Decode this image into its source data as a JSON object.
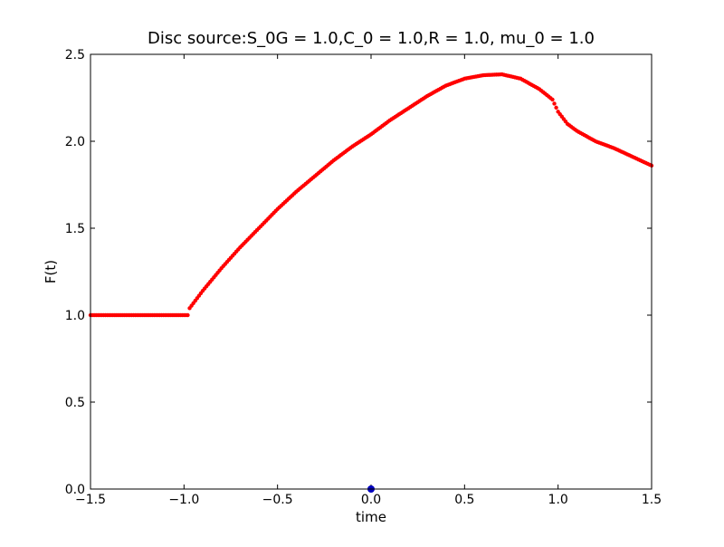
{
  "chart_data": {
    "type": "scatter",
    "title": "Disc source:S_0G = 1.0,C_0 = 1.0,R = 1.0, mu_0 = 1.0",
    "xlabel": "time",
    "ylabel": "F(t)",
    "xlim": [
      -1.5,
      1.5
    ],
    "ylim": [
      0.0,
      2.5
    ],
    "x_ticks": [
      "−1.5",
      "−1.0",
      "−0.5",
      "0.0",
      "0.5",
      "1.0",
      "1.5"
    ],
    "y_ticks": [
      "0.0",
      "0.5",
      "1.0",
      "1.5",
      "2.0",
      "2.5"
    ],
    "grid": false,
    "series": [
      {
        "color": "#ff0000",
        "marker": "dot",
        "points": [
          [
            -1.5,
            1.0
          ],
          [
            -1.4,
            1.0
          ],
          [
            -1.3,
            1.0
          ],
          [
            -1.2,
            1.0
          ],
          [
            -1.1,
            1.0
          ],
          [
            -1.0,
            1.0
          ],
          [
            -0.98,
            1.0
          ],
          [
            -0.97,
            1.04
          ],
          [
            -0.9,
            1.14
          ],
          [
            -0.8,
            1.27
          ],
          [
            -0.7,
            1.39
          ],
          [
            -0.6,
            1.5
          ],
          [
            -0.5,
            1.61
          ],
          [
            -0.4,
            1.71
          ],
          [
            -0.3,
            1.8
          ],
          [
            -0.2,
            1.89
          ],
          [
            -0.1,
            1.97
          ],
          [
            0.0,
            2.04
          ],
          [
            0.1,
            2.12
          ],
          [
            0.2,
            2.19
          ],
          [
            0.3,
            2.26
          ],
          [
            0.4,
            2.32
          ],
          [
            0.5,
            2.36
          ],
          [
            0.6,
            2.38
          ],
          [
            0.7,
            2.385
          ],
          [
            0.8,
            2.36
          ],
          [
            0.9,
            2.3
          ],
          [
            0.97,
            2.24
          ],
          [
            1.0,
            2.17
          ],
          [
            1.05,
            2.1
          ],
          [
            1.1,
            2.06
          ],
          [
            1.2,
            2.0
          ],
          [
            1.3,
            1.96
          ],
          [
            1.4,
            1.91
          ],
          [
            1.5,
            1.86
          ]
        ]
      },
      {
        "color": "#0000bf",
        "marker": "circle",
        "points": [
          [
            0.0,
            0.0
          ]
        ]
      }
    ]
  }
}
